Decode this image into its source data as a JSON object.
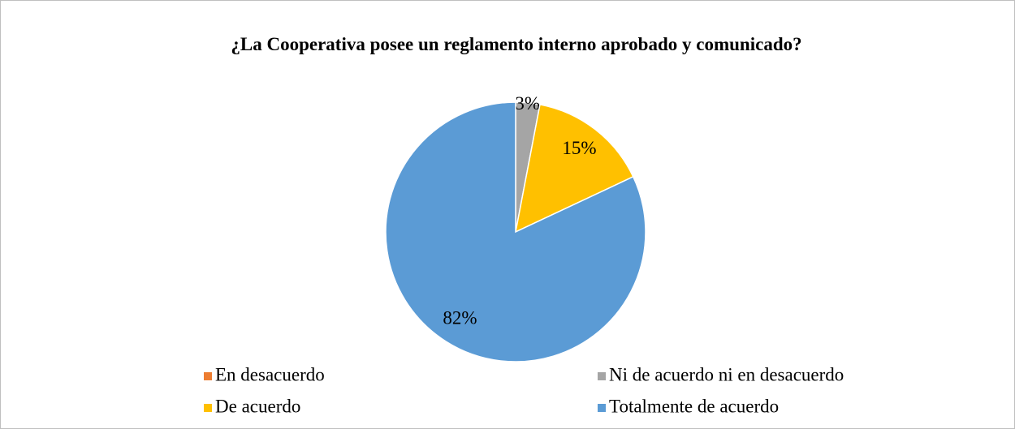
{
  "chart_data": {
    "type": "pie",
    "title": "¿La Cooperativa posee un reglamento interno aprobado y comunicado?",
    "categories": [
      "En desacuerdo",
      "Ni de acuerdo ni en desacuerdo",
      "De acuerdo",
      "Totalmente de acuerdo"
    ],
    "values": [
      0,
      3,
      15,
      82
    ],
    "value_labels": [
      null,
      "3%",
      "15%",
      "82%"
    ],
    "colors": [
      "#ed7d31",
      "#a5a5a5",
      "#ffc000",
      "#5b9bd5"
    ],
    "legend": "bottom"
  }
}
